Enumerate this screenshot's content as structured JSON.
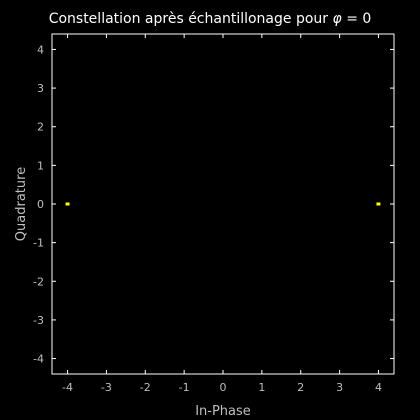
{
  "chart_data": {
    "type": "scatter",
    "title": "Constellation après échantillonage pour ",
    "title_symbol": "φ",
    "title_suffix": " = 0",
    "xlabel": "In-Phase",
    "ylabel": "Quadrature",
    "xlim": [
      -4.4,
      4.4
    ],
    "ylim": [
      -4.4,
      4.4
    ],
    "xticks": [
      -4,
      -3,
      -2,
      -1,
      0,
      1,
      2,
      3,
      4
    ],
    "yticks": [
      -4,
      -3,
      -2,
      -1,
      0,
      1,
      2,
      3,
      4
    ],
    "xtick_labels": [
      "-4",
      "-3",
      "-2",
      "-1",
      "0",
      "1",
      "2",
      "3",
      "4"
    ],
    "ytick_labels": [
      "-4",
      "-3",
      "-2",
      "-1",
      "0",
      "1",
      "2",
      "3",
      "4"
    ],
    "grid": false,
    "points": [
      {
        "x": -4,
        "y": 0
      },
      {
        "x": 4,
        "y": 0
      }
    ],
    "colors": {
      "background": "#000000",
      "axes": "#ffffff",
      "text": "#bfbfbf",
      "title": "#ffffff",
      "marker": "#ffff00"
    }
  }
}
